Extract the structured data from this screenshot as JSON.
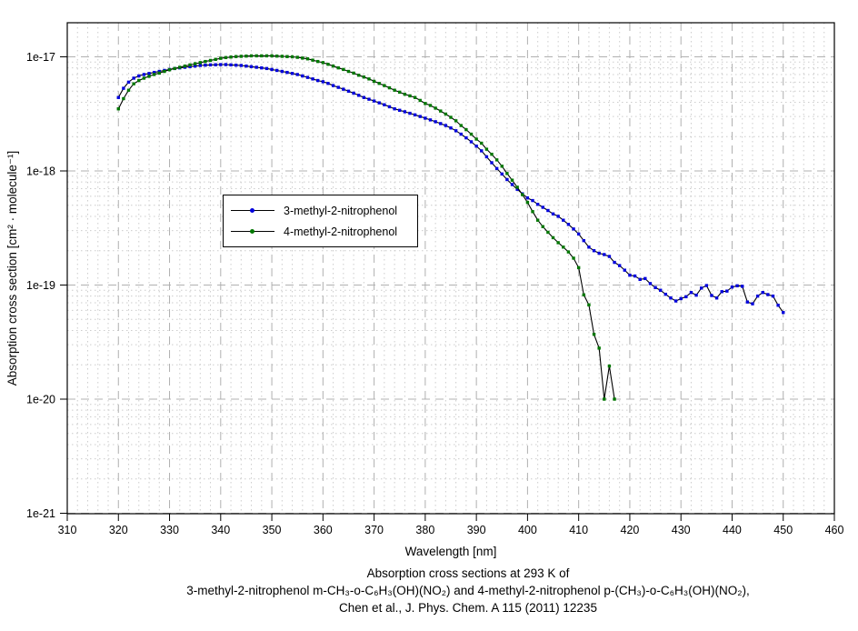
{
  "chart_data": {
    "type": "line",
    "title_lines": [
      "Absorption cross sections at 293 K of",
      "3-methyl-2-nitrophenol m-CH₃-o-C₆H₃(OH)(NO₂) and 4-methyl-2-nitrophenol p-(CH₃)-o-C₆H₃(OH)(NO₂),",
      "Chen et al., J. Phys. Chem. A 115 (2011) 12235"
    ],
    "x_axis": {
      "title": "Wavelength [nm]",
      "min": 310,
      "max": 460,
      "major_tick_step": 10,
      "minor_tick_step": 2,
      "tick_labels": [
        "310",
        "320",
        "330",
        "340",
        "350",
        "360",
        "370",
        "380",
        "390",
        "400",
        "410",
        "420",
        "430",
        "440",
        "450",
        "460"
      ]
    },
    "y_axis": {
      "title": "Absorption cross section [cm² · molecule⁻¹]",
      "scale": "log",
      "min": 1e-21,
      "max": 2e-17,
      "decade_labels": [
        "1e-17",
        "1e-18",
        "1e-19",
        "1e-20",
        "1e-21"
      ],
      "decade_exponents": [
        -17,
        -18,
        -19,
        -20,
        -21
      ]
    },
    "grid": {
      "major_on": true,
      "minor_on": true
    },
    "legend_position": "inside-upper-left-of-center",
    "colors": {
      "series1_marker": "#0000dd",
      "series2_marker": "#007700",
      "line": "#000000",
      "grid_major": "#b0b0b0",
      "grid_minor": "#cccccc",
      "frame": "#000000",
      "background": "#ffffff"
    },
    "series": [
      {
        "name": "3-methyl-2-nitrophenol",
        "marker_color": "#0000dd",
        "line_color": "#000000",
        "x": [
          320,
          321,
          322,
          323,
          324,
          325,
          326,
          327,
          328,
          329,
          330,
          331,
          332,
          333,
          334,
          335,
          336,
          337,
          338,
          339,
          340,
          341,
          342,
          343,
          344,
          345,
          346,
          347,
          348,
          349,
          350,
          351,
          352,
          353,
          354,
          355,
          356,
          357,
          358,
          359,
          360,
          361,
          362,
          363,
          364,
          365,
          366,
          367,
          368,
          369,
          370,
          371,
          372,
          373,
          374,
          375,
          376,
          377,
          378,
          379,
          380,
          381,
          382,
          383,
          384,
          385,
          386,
          387,
          388,
          389,
          390,
          391,
          392,
          393,
          394,
          395,
          396,
          397,
          398,
          399,
          400,
          401,
          402,
          403,
          404,
          405,
          406,
          407,
          408,
          409,
          410,
          411,
          412,
          413,
          414,
          415,
          416,
          417,
          418,
          419,
          420,
          421,
          422,
          423,
          424,
          425,
          426,
          427,
          428,
          429,
          430,
          431,
          432,
          433,
          434,
          435,
          436,
          437,
          438,
          439,
          440,
          441,
          442,
          443,
          444,
          445,
          446,
          447,
          448,
          449,
          450
        ],
        "y": [
          4.4e-18,
          5.3e-18,
          6e-18,
          6.5e-18,
          6.8e-18,
          7e-18,
          7.15e-18,
          7.3e-18,
          7.45e-18,
          7.6e-18,
          7.75e-18,
          7.9e-18,
          8e-18,
          8.1e-18,
          8.2e-18,
          8.3e-18,
          8.4e-18,
          8.45e-18,
          8.5e-18,
          8.52e-18,
          8.55e-18,
          8.55e-18,
          8.5e-18,
          8.45e-18,
          8.4e-18,
          8.3e-18,
          8.2e-18,
          8.1e-18,
          8e-18,
          7.9e-18,
          7.75e-18,
          7.6e-18,
          7.45e-18,
          7.3e-18,
          7.15e-18,
          7e-18,
          6.8e-18,
          6.6e-18,
          6.4e-18,
          6.2e-18,
          6.05e-18,
          5.85e-18,
          5.6e-18,
          5.4e-18,
          5.2e-18,
          5e-18,
          4.8e-18,
          4.6e-18,
          4.4e-18,
          4.25e-18,
          4.1e-18,
          3.95e-18,
          3.8e-18,
          3.65e-18,
          3.5e-18,
          3.4e-18,
          3.3e-18,
          3.2e-18,
          3.1e-18,
          3e-18,
          2.9e-18,
          2.8e-18,
          2.7e-18,
          2.6e-18,
          2.5e-18,
          2.38e-18,
          2.25e-18,
          2.1e-18,
          1.95e-18,
          1.8e-18,
          1.65e-18,
          1.5e-18,
          1.33e-18,
          1.18e-18,
          1.05e-18,
          9.4e-19,
          8.4e-19,
          7.6e-19,
          6.9e-19,
          6.3e-19,
          5.8e-19,
          5.5e-19,
          5.1e-19,
          4.8e-19,
          4.5e-19,
          4.2e-19,
          4e-19,
          3.7e-19,
          3.4e-19,
          3.1e-19,
          2.8e-19,
          2.45e-19,
          2.15e-19,
          2e-19,
          1.9e-19,
          1.85e-19,
          1.78e-19,
          1.58e-19,
          1.48e-19,
          1.35e-19,
          1.22e-19,
          1.2e-19,
          1.12e-19,
          1.14e-19,
          1.03e-19,
          9.5e-20,
          9e-20,
          8.3e-20,
          7.7e-20,
          7.25e-20,
          7.6e-20,
          7.9e-20,
          8.6e-20,
          8.15e-20,
          9.4e-20,
          9.9e-20,
          8.1e-20,
          7.7e-20,
          8.75e-20,
          8.85e-20,
          9.6e-20,
          9.85e-20,
          9.75e-20,
          7.1e-20,
          6.85e-20,
          8e-20,
          8.6e-20,
          8.25e-20,
          8e-20,
          6.65e-20,
          5.75e-20
        ]
      },
      {
        "name": "4-methyl-2-nitrophenol",
        "marker_color": "#007700",
        "line_color": "#000000",
        "x": [
          320,
          321,
          322,
          323,
          324,
          325,
          326,
          327,
          328,
          329,
          330,
          331,
          332,
          333,
          334,
          335,
          336,
          337,
          338,
          339,
          340,
          341,
          342,
          343,
          344,
          345,
          346,
          347,
          348,
          349,
          350,
          351,
          352,
          353,
          354,
          355,
          356,
          357,
          358,
          359,
          360,
          361,
          362,
          363,
          364,
          365,
          366,
          367,
          368,
          369,
          370,
          371,
          372,
          373,
          374,
          375,
          376,
          377,
          378,
          379,
          380,
          381,
          382,
          383,
          384,
          385,
          386,
          387,
          388,
          389,
          390,
          391,
          392,
          393,
          394,
          395,
          396,
          397,
          398,
          399,
          400,
          401,
          402,
          403,
          404,
          405,
          406,
          407,
          408,
          409,
          410,
          411,
          412,
          413,
          414,
          415,
          416,
          417
        ],
        "y": [
          3.5e-18,
          4.3e-18,
          5.1e-18,
          5.8e-18,
          6.2e-18,
          6.5e-18,
          6.75e-18,
          7e-18,
          7.2e-18,
          7.45e-18,
          7.7e-18,
          7.9e-18,
          8.1e-18,
          8.3e-18,
          8.5e-18,
          8.7e-18,
          8.9e-18,
          9.1e-18,
          9.3e-18,
          9.5e-18,
          9.7e-18,
          9.85e-18,
          9.95e-18,
          1.005e-17,
          1.01e-17,
          1.015e-17,
          1.02e-17,
          1.02e-17,
          1.02e-17,
          1.02e-17,
          1.02e-17,
          1.015e-17,
          1.01e-17,
          1.005e-17,
          1e-17,
          9.9e-18,
          9.75e-18,
          9.6e-18,
          9.35e-18,
          9.1e-18,
          8.9e-18,
          8.6e-18,
          8.3e-18,
          8e-18,
          7.75e-18,
          7.45e-18,
          7.2e-18,
          6.9e-18,
          6.65e-18,
          6.4e-18,
          6.1e-18,
          5.85e-18,
          5.6e-18,
          5.35e-18,
          5.1e-18,
          4.9e-18,
          4.7e-18,
          4.55e-18,
          4.4e-18,
          4.15e-18,
          3.9e-18,
          3.75e-18,
          3.55e-18,
          3.35e-18,
          3.15e-18,
          2.95e-18,
          2.75e-18,
          2.5e-18,
          2.3e-18,
          2.1e-18,
          1.9e-18,
          1.75e-18,
          1.55e-18,
          1.4e-18,
          1.25e-18,
          1.1e-18,
          9.5e-19,
          8.3e-19,
          7.2e-19,
          6.2e-19,
          5.3e-19,
          4.4e-19,
          3.7e-19,
          3.25e-19,
          2.9e-19,
          2.6e-19,
          2.35e-19,
          2.15e-19,
          1.95e-19,
          1.72e-19,
          1.42e-19,
          8.2e-20,
          6.7e-20,
          3.7e-20,
          2.8e-20,
          1e-20,
          1.95e-20,
          1e-20
        ]
      }
    ]
  }
}
